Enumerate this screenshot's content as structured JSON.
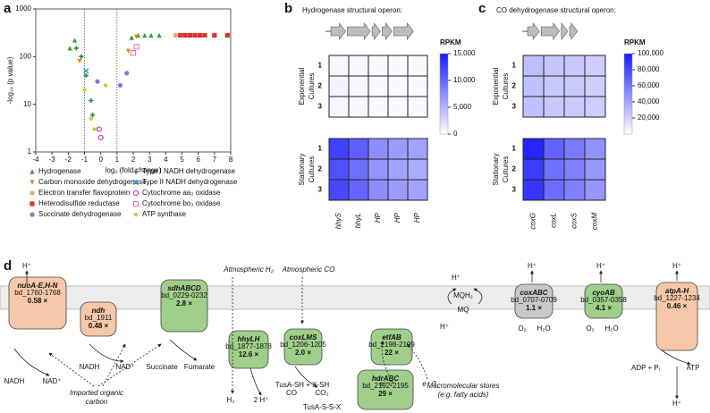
{
  "panel_a": {
    "label": "a",
    "type": "scatter",
    "x_label": "log₂ (fold change)",
    "y_label": "-log₁₀ (p value)",
    "xlim": [
      -4,
      8
    ],
    "xticks": [
      -4,
      -3,
      -2,
      -1,
      0,
      1,
      2,
      3,
      4,
      5,
      6,
      7,
      8
    ],
    "ylim": [
      1,
      1000
    ],
    "yticks": [
      1,
      10,
      100,
      1000
    ],
    "log_y": true,
    "threshold_x": [
      -1,
      1
    ],
    "series": [
      {
        "name": "Hydrogenase",
        "color": "#2ca02c",
        "marker": "triangle",
        "x": [
          -1.9,
          -1.6,
          1.9,
          2.3,
          2.7,
          3.1,
          3.6
        ],
        "y": [
          150,
          220,
          250,
          280,
          280,
          280,
          280
        ]
      },
      {
        "name": "Carbon monoxide dehydrogenase",
        "color": "#f07d1a",
        "marker": "triangle-down",
        "x": [
          -1.3,
          1.7,
          2.2
        ],
        "y": [
          80,
          130,
          260
        ]
      },
      {
        "name": "Electron transfer flavoprotein",
        "color": "#f5a36b",
        "marker": "circle",
        "x": [
          4.6,
          5.0
        ],
        "y": [
          280,
          280
        ]
      },
      {
        "name": "Heterodisulfide reductase",
        "color": "#e03030",
        "marker": "square",
        "x": [
          4.9,
          5.2,
          5.5,
          5.8,
          6.1,
          6.4,
          7.0,
          7.8
        ],
        "y": [
          280,
          280,
          280,
          280,
          280,
          280,
          280,
          280
        ]
      },
      {
        "name": "Succinate dehydrogenase",
        "color": "#7080e0",
        "marker": "circle",
        "x": [
          -0.2,
          1.2,
          1.6
        ],
        "y": [
          30,
          25,
          45
        ]
      },
      {
        "name": "Type I NADH dehydrogenase",
        "color": "#2b8a3e",
        "marker": "plus",
        "x": [
          -1.5,
          -1.2,
          -0.9,
          -0.6,
          -0.5
        ],
        "y": [
          150,
          100,
          40,
          12,
          6
        ]
      },
      {
        "name": "Type II NADH dehydrogenase",
        "color": "#3a8fd0",
        "marker": "cross",
        "x": [
          -0.9
        ],
        "y": [
          50
        ]
      },
      {
        "name": "Cytochrome aa₃ oxidase",
        "color": "#c020c0",
        "marker": "open-circle",
        "x": [
          -0.1,
          0.0
        ],
        "y": [
          3,
          2
        ]
      },
      {
        "name": "Cytochrome bo₃ oxidase",
        "color": "#e070a0",
        "marker": "open-square",
        "x": [
          2.0,
          2.2
        ],
        "y": [
          120,
          160
        ]
      },
      {
        "name": "ATP synthase",
        "color": "#c8c820",
        "marker": "diamond",
        "x": [
          -1.0,
          -0.6,
          -0.4,
          0.3
        ],
        "y": [
          20,
          5,
          3,
          25
        ]
      }
    ]
  },
  "panel_b": {
    "label": "b",
    "type": "heatmap",
    "title": "Hydrogenase structural operon:",
    "colorbar_title": "RPKM",
    "columns": [
      "hhyS",
      "hhyL",
      "HP",
      "HP",
      "HP"
    ],
    "rows": [
      "1",
      "2",
      "3"
    ],
    "groups": [
      {
        "lines": [
          "Exponential",
          "Cultures"
        ],
        "values": [
          [
            600,
            500,
            400,
            400,
            400
          ],
          [
            700,
            500,
            450,
            400,
            400
          ],
          [
            600,
            500,
            400,
            400,
            400
          ]
        ]
      },
      {
        "lines": [
          "Stationary",
          "Cultures"
        ],
        "values": [
          [
            12500,
            10500,
            7500,
            6500,
            6000
          ],
          [
            11500,
            9500,
            7000,
            6000,
            5500
          ],
          [
            12000,
            10000,
            7500,
            6500,
            6000
          ]
        ]
      }
    ],
    "clim": [
      0,
      15000
    ],
    "cticks": [
      0,
      {
        "value": 5000,
        "label": "5,000"
      },
      {
        "value": 10000,
        "label": "10,000"
      },
      {
        "value": 15000,
        "label": "15,000"
      }
    ],
    "color": "#1a1aff"
  },
  "panel_c": {
    "label": "c",
    "type": "heatmap",
    "title": "CO dehydrogenase structural operon:",
    "colorbar_title": "RPKM",
    "columns": [
      "coxG",
      "coxL",
      "coxS",
      "coxM"
    ],
    "rows": [
      "1",
      "2",
      "3"
    ],
    "groups": [
      {
        "lines": [
          "Exponential",
          "Cultures"
        ],
        "values": [
          [
            28000,
            25000,
            24000,
            22000
          ],
          [
            27000,
            24000,
            23000,
            21000
          ],
          [
            27000,
            24000,
            23000,
            22000
          ]
        ]
      },
      {
        "lines": [
          "Stationary",
          "Cultures"
        ],
        "values": [
          [
            95000,
            68000,
            58000,
            48000
          ],
          [
            85000,
            62000,
            55000,
            45000
          ],
          [
            88000,
            64000,
            56000,
            46000
          ]
        ]
      }
    ],
    "clim": [
      0,
      100000
    ],
    "cticks": [
      {
        "value": 20000,
        "label": "20,000"
      },
      {
        "value": 40000,
        "label": "40,000"
      },
      {
        "value": 60000,
        "label": "60,000"
      },
      {
        "value": 80000,
        "label": "80,000"
      },
      {
        "value": 100000,
        "label": "100,000"
      }
    ],
    "color": "#1a1aff"
  },
  "panel_d": {
    "label": "d",
    "nodes": [
      {
        "label": "nuoA-E,H-N",
        "locus": "bd_1760-1768",
        "fold": "0.58 ×",
        "color": "#f6c7a8"
      },
      {
        "label": "ndh",
        "locus": "bd_1911",
        "fold": "0.48 ×",
        "color": "#f6c7a8"
      },
      {
        "label": "sdhABCD",
        "locus": "bd_0229-0232",
        "fold": "2.8 ×",
        "color": "#9fcf8a"
      },
      {
        "label": "hhyLH",
        "locus": "bd_1877-1878",
        "fold": "12.6 ×",
        "color": "#9fcf8a"
      },
      {
        "label": "coxLMS",
        "locus": "bd_1206-1205",
        "fold": "2.0 ×",
        "color": "#9fcf8a"
      },
      {
        "label": "etfAB",
        "locus": "bd_2198-2199",
        "fold": "22 ×",
        "color": "#9fcf8a"
      },
      {
        "label": "hdrABC",
        "locus": "bd_2192-2195",
        "fold": "29 ×",
        "color": "#9fcf8a"
      },
      {
        "label": "coxABC",
        "locus": "bd_0707-0709",
        "fold": "1.1 ×",
        "color": "#c8c8c8"
      },
      {
        "label": "cyoAB",
        "locus": "bd_0357-0358",
        "fold": "4.1 ×",
        "color": "#9fcf8a"
      },
      {
        "label": "atpA-H",
        "locus": "bd_1227-1234",
        "fold": "0.46 ×",
        "color": "#f6c7a8"
      }
    ],
    "labels": [
      "H⁺",
      "NADH",
      "NAD⁺",
      "NADH",
      "NAD⁺",
      "Succinate",
      "Fumarate",
      "Atmospheric H₂",
      "Atmospheric CO",
      "H₂",
      "2 H⁺",
      "CO",
      "CO₂",
      "e⁻ ?",
      "e⁻ ?",
      "TusA-SH + X-SH",
      "TusA-S-S-X",
      "Macromolecular stores",
      "(e.g. fatty acids)",
      "Imported organic",
      "carbon",
      "MQH₂",
      "MQ",
      "H⁺",
      "H⁺",
      "H⁺",
      "O₂",
      "H₂O",
      "H⁺",
      "O₂",
      "H₂O",
      "H⁺",
      "ADP + Pᵢ",
      "ATP",
      "H⁺"
    ]
  }
}
